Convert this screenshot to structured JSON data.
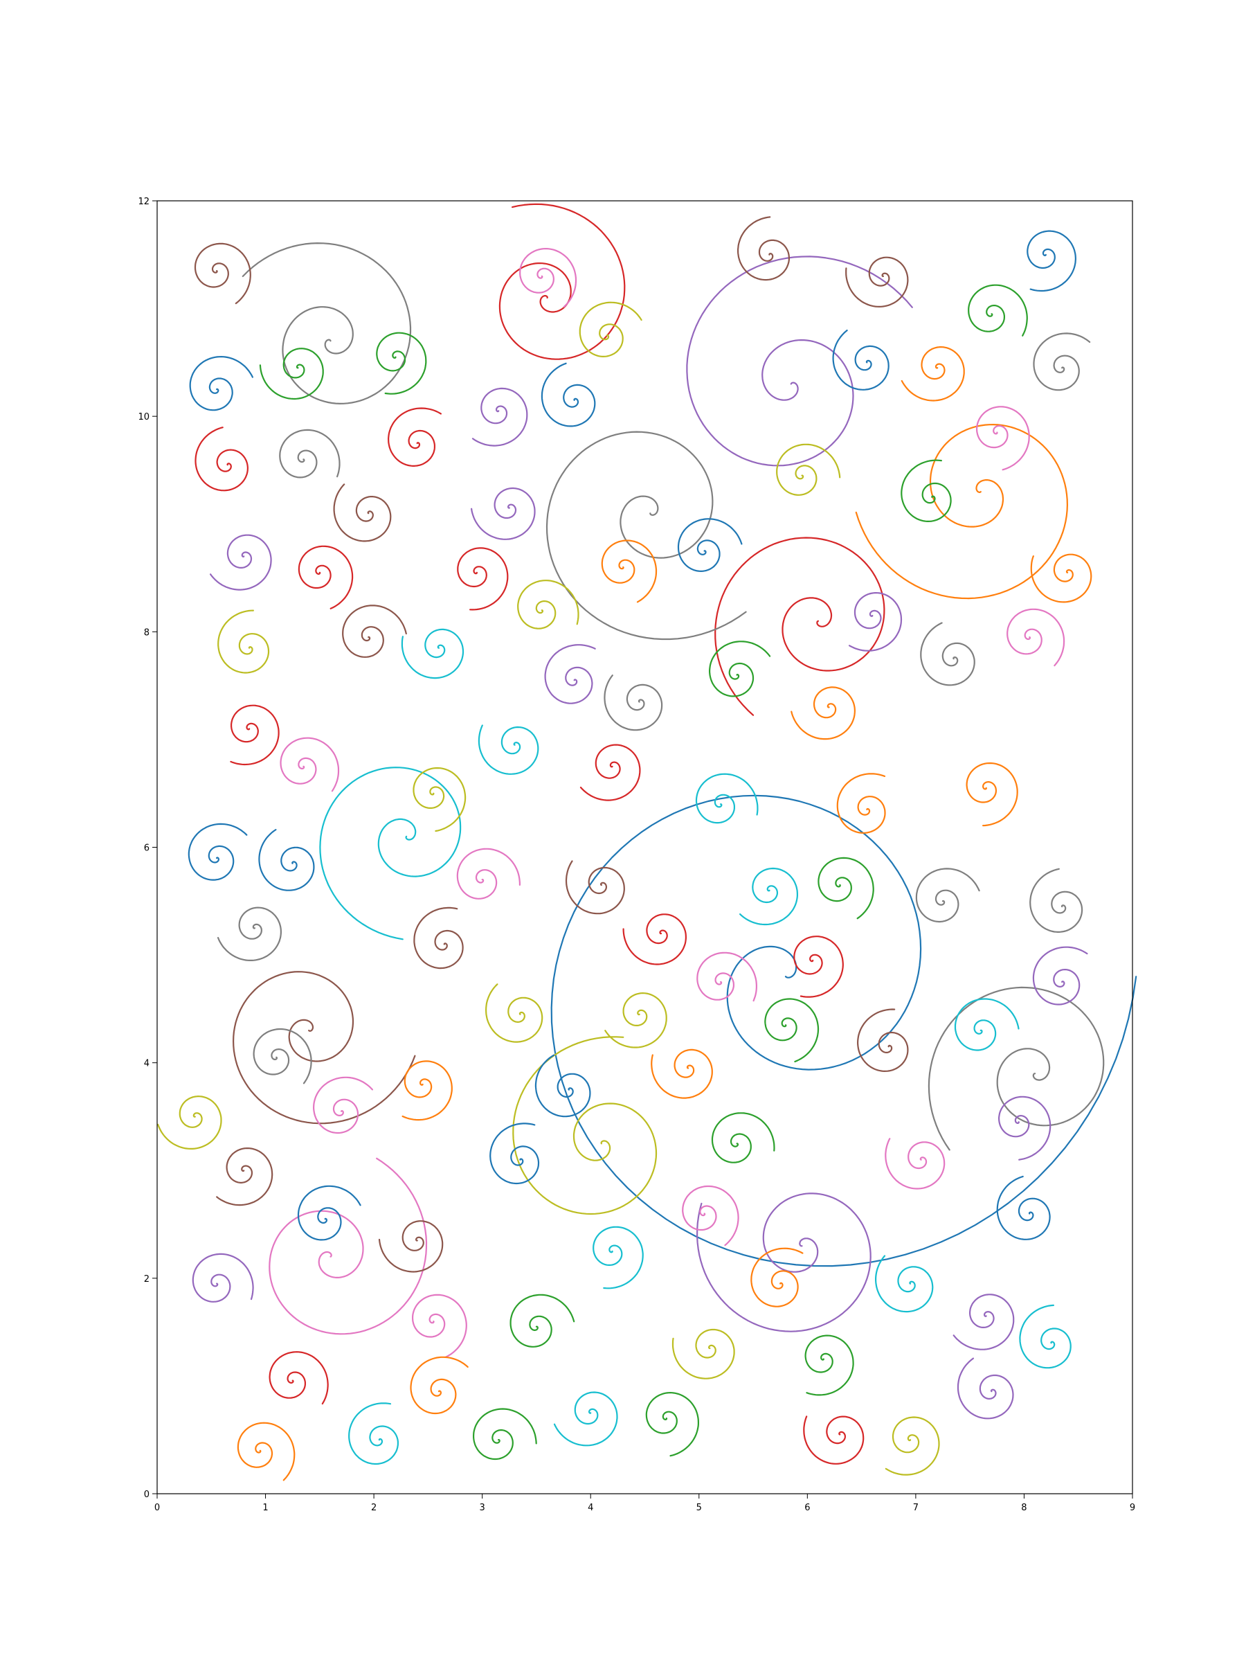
{
  "chart_data": {
    "type": "line",
    "title": "",
    "xlabel": "",
    "ylabel": "",
    "xlim": [
      0,
      9
    ],
    "ylim": [
      0,
      12
    ],
    "grid": false,
    "legend": "none",
    "x_ticks": [
      "0",
      "1",
      "2",
      "3",
      "4",
      "5",
      "6",
      "7",
      "8",
      "9"
    ],
    "y_ticks": [
      "0",
      "2",
      "4",
      "6",
      "8",
      "10",
      "12"
    ],
    "palette": [
      "#1f77b4",
      "#ff7f0e",
      "#2ca02c",
      "#d62728",
      "#9467bd",
      "#8c564b",
      "#e377c2",
      "#7f7f7f",
      "#bcbd22",
      "#17becf"
    ],
    "series": [
      {
        "cx": 5.8,
        "cy": 4.8,
        "r": 3.05,
        "cw": true,
        "color": "#1f77b4"
      },
      {
        "cx": 4.1,
        "cy": 3.25,
        "r": 0.95,
        "cw": false,
        "color": "#bcbd22"
      },
      {
        "cx": 5.95,
        "cy": 2.3,
        "r": 0.95,
        "cw": false,
        "color": "#9467bd"
      },
      {
        "cx": 6.1,
        "cy": 8.1,
        "r": 1.0,
        "cw": true,
        "color": "#d62728"
      },
      {
        "cx": 4.55,
        "cy": 9.1,
        "r": 1.2,
        "cw": true,
        "color": "#7f7f7f"
      },
      {
        "cx": 5.85,
        "cy": 10.3,
        "r": 1.25,
        "cw": false,
        "color": "#9467bd"
      },
      {
        "cx": 3.6,
        "cy": 11.1,
        "r": 0.85,
        "cw": true,
        "color": "#d62728"
      },
      {
        "cx": 7.6,
        "cy": 9.3,
        "r": 1.1,
        "cw": false,
        "color": "#ff7f0e"
      },
      {
        "cx": 2.3,
        "cy": 6.1,
        "r": 0.9,
        "cw": true,
        "color": "#17becf"
      },
      {
        "cx": 1.4,
        "cy": 4.3,
        "r": 0.95,
        "cw": true,
        "color": "#8c564b"
      },
      {
        "cx": 1.6,
        "cy": 2.2,
        "r": 0.95,
        "cw": true,
        "color": "#e377c2"
      },
      {
        "cx": 1.6,
        "cy": 10.7,
        "r": 0.95,
        "cw": true,
        "color": "#7f7f7f"
      },
      {
        "cx": 8.1,
        "cy": 3.9,
        "r": 1.0,
        "cw": true,
        "color": "#7f7f7f"
      },
      {
        "cx": 0.55,
        "cy": 11.35,
        "r": 0.33,
        "cw": false,
        "color": "#8c564b"
      },
      {
        "cx": 0.55,
        "cy": 10.25,
        "r": 0.33,
        "cw": false,
        "color": "#1f77b4"
      },
      {
        "cx": 0.65,
        "cy": 9.55,
        "r": 0.33,
        "cw": false,
        "color": "#d62728"
      },
      {
        "cx": 1.3,
        "cy": 10.45,
        "r": 0.33,
        "cw": false,
        "color": "#2ca02c"
      },
      {
        "cx": 2.2,
        "cy": 10.55,
        "r": 0.33,
        "cw": false,
        "color": "#2ca02c"
      },
      {
        "cx": 1.35,
        "cy": 9.6,
        "r": 0.33,
        "cw": false,
        "color": "#7f7f7f"
      },
      {
        "cx": 2.4,
        "cy": 9.75,
        "r": 0.33,
        "cw": false,
        "color": "#d62728"
      },
      {
        "cx": 1.95,
        "cy": 9.1,
        "r": 0.33,
        "cw": false,
        "color": "#8c564b"
      },
      {
        "cx": 0.8,
        "cy": 8.7,
        "r": 0.33,
        "cw": false,
        "color": "#9467bd"
      },
      {
        "cx": 1.5,
        "cy": 8.55,
        "r": 0.33,
        "cw": false,
        "color": "#d62728"
      },
      {
        "cx": 1.95,
        "cy": 7.95,
        "r": 0.33,
        "cw": false,
        "color": "#8c564b"
      },
      {
        "cx": 0.85,
        "cy": 7.85,
        "r": 0.33,
        "cw": false,
        "color": "#bcbd22"
      },
      {
        "cx": 2.6,
        "cy": 7.85,
        "r": 0.33,
        "cw": false,
        "color": "#17becf"
      },
      {
        "cx": 0.85,
        "cy": 7.1,
        "r": 0.33,
        "cw": false,
        "color": "#d62728"
      },
      {
        "cx": 1.35,
        "cy": 6.75,
        "r": 0.33,
        "cw": false,
        "color": "#e377c2"
      },
      {
        "cx": 0.55,
        "cy": 5.9,
        "r": 0.33,
        "cw": false,
        "color": "#1f77b4"
      },
      {
        "cx": 1.25,
        "cy": 5.85,
        "r": 0.33,
        "cw": false,
        "color": "#1f77b4"
      },
      {
        "cx": 0.9,
        "cy": 5.25,
        "r": 0.33,
        "cw": false,
        "color": "#7f7f7f"
      },
      {
        "cx": 2.55,
        "cy": 6.5,
        "r": 0.33,
        "cw": false,
        "color": "#bcbd22"
      },
      {
        "cx": 3.0,
        "cy": 5.7,
        "r": 0.33,
        "cw": false,
        "color": "#e377c2"
      },
      {
        "cx": 2.65,
        "cy": 5.1,
        "r": 0.33,
        "cw": false,
        "color": "#8c564b"
      },
      {
        "cx": 3.3,
        "cy": 6.95,
        "r": 0.33,
        "cw": false,
        "color": "#17becf"
      },
      {
        "cx": 3.15,
        "cy": 10.05,
        "r": 0.33,
        "cw": false,
        "color": "#9467bd"
      },
      {
        "cx": 3.55,
        "cy": 11.3,
        "r": 0.33,
        "cw": false,
        "color": "#e377c2"
      },
      {
        "cx": 4.15,
        "cy": 10.75,
        "r": 0.33,
        "cw": false,
        "color": "#bcbd22"
      },
      {
        "cx": 3.85,
        "cy": 10.15,
        "r": 0.33,
        "cw": false,
        "color": "#1f77b4"
      },
      {
        "cx": 3.25,
        "cy": 9.15,
        "r": 0.33,
        "cw": false,
        "color": "#9467bd"
      },
      {
        "cx": 2.95,
        "cy": 8.55,
        "r": 0.33,
        "cw": false,
        "color": "#d62728"
      },
      {
        "cx": 3.55,
        "cy": 8.2,
        "r": 0.33,
        "cw": false,
        "color": "#bcbd22"
      },
      {
        "cx": 3.85,
        "cy": 7.55,
        "r": 0.33,
        "cw": false,
        "color": "#9467bd"
      },
      {
        "cx": 4.45,
        "cy": 7.35,
        "r": 0.33,
        "cw": false,
        "color": "#7f7f7f"
      },
      {
        "cx": 4.2,
        "cy": 6.75,
        "r": 0.33,
        "cw": false,
        "color": "#d62728"
      },
      {
        "cx": 4.3,
        "cy": 8.6,
        "r": 0.33,
        "cw": false,
        "color": "#ff7f0e"
      },
      {
        "cx": 5.05,
        "cy": 8.75,
        "r": 0.33,
        "cw": false,
        "color": "#1f77b4"
      },
      {
        "cx": 5.65,
        "cy": 11.5,
        "r": 0.33,
        "cw": false,
        "color": "#8c564b"
      },
      {
        "cx": 6.7,
        "cy": 11.3,
        "r": 0.33,
        "cw": false,
        "color": "#8c564b"
      },
      {
        "cx": 8.2,
        "cy": 11.5,
        "r": 0.33,
        "cw": false,
        "color": "#1f77b4"
      },
      {
        "cx": 7.7,
        "cy": 10.95,
        "r": 0.33,
        "cw": false,
        "color": "#2ca02c"
      },
      {
        "cx": 8.35,
        "cy": 10.45,
        "r": 0.33,
        "cw": false,
        "color": "#7f7f7f"
      },
      {
        "cx": 6.55,
        "cy": 10.5,
        "r": 0.33,
        "cw": false,
        "color": "#1f77b4"
      },
      {
        "cx": 7.2,
        "cy": 10.45,
        "r": 0.33,
        "cw": false,
        "color": "#ff7f0e"
      },
      {
        "cx": 7.75,
        "cy": 9.85,
        "r": 0.33,
        "cw": false,
        "color": "#e377c2"
      },
      {
        "cx": 5.95,
        "cy": 9.45,
        "r": 0.33,
        "cw": false,
        "color": "#bcbd22"
      },
      {
        "cx": 7.15,
        "cy": 9.25,
        "r": 0.33,
        "cw": false,
        "color": "#2ca02c"
      },
      {
        "cx": 8.4,
        "cy": 8.55,
        "r": 0.33,
        "cw": false,
        "color": "#ff7f0e"
      },
      {
        "cx": 6.6,
        "cy": 8.15,
        "r": 0.33,
        "cw": false,
        "color": "#9467bd"
      },
      {
        "cx": 8.05,
        "cy": 7.95,
        "r": 0.33,
        "cw": false,
        "color": "#e377c2"
      },
      {
        "cx": 5.35,
        "cy": 7.6,
        "r": 0.33,
        "cw": false,
        "color": "#2ca02c"
      },
      {
        "cx": 7.35,
        "cy": 7.75,
        "r": 0.33,
        "cw": false,
        "color": "#7f7f7f"
      },
      {
        "cx": 6.2,
        "cy": 7.3,
        "r": 0.33,
        "cw": false,
        "color": "#ff7f0e"
      },
      {
        "cx": 7.65,
        "cy": 6.55,
        "r": 0.33,
        "cw": false,
        "color": "#ff7f0e"
      },
      {
        "cx": 5.2,
        "cy": 6.4,
        "r": 0.33,
        "cw": false,
        "color": "#17becf"
      },
      {
        "cx": 6.55,
        "cy": 6.35,
        "r": 0.33,
        "cw": false,
        "color": "#ff7f0e"
      },
      {
        "cx": 4.1,
        "cy": 5.65,
        "r": 0.33,
        "cw": false,
        "color": "#8c564b"
      },
      {
        "cx": 5.65,
        "cy": 5.6,
        "r": 0.33,
        "cw": false,
        "color": "#17becf"
      },
      {
        "cx": 6.3,
        "cy": 5.65,
        "r": 0.33,
        "cw": false,
        "color": "#2ca02c"
      },
      {
        "cx": 7.25,
        "cy": 5.5,
        "r": 0.33,
        "cw": false,
        "color": "#7f7f7f"
      },
      {
        "cx": 8.35,
        "cy": 5.45,
        "r": 0.33,
        "cw": false,
        "color": "#7f7f7f"
      },
      {
        "cx": 4.65,
        "cy": 5.2,
        "r": 0.33,
        "cw": false,
        "color": "#d62728"
      },
      {
        "cx": 6.05,
        "cy": 4.95,
        "r": 0.33,
        "cw": false,
        "color": "#d62728"
      },
      {
        "cx": 5.2,
        "cy": 4.75,
        "r": 0.33,
        "cw": false,
        "color": "#e377c2"
      },
      {
        "cx": 8.35,
        "cy": 4.75,
        "r": 0.33,
        "cw": false,
        "color": "#9467bd"
      },
      {
        "cx": 3.35,
        "cy": 4.45,
        "r": 0.33,
        "cw": false,
        "color": "#bcbd22"
      },
      {
        "cx": 4.45,
        "cy": 4.45,
        "r": 0.33,
        "cw": false,
        "color": "#bcbd22"
      },
      {
        "cx": 5.8,
        "cy": 4.35,
        "r": 0.33,
        "cw": false,
        "color": "#2ca02c"
      },
      {
        "cx": 7.6,
        "cy": 4.3,
        "r": 0.33,
        "cw": false,
        "color": "#17becf"
      },
      {
        "cx": 6.75,
        "cy": 4.15,
        "r": 0.33,
        "cw": false,
        "color": "#8c564b"
      },
      {
        "cx": 4.9,
        "cy": 3.95,
        "r": 0.33,
        "cw": false,
        "color": "#ff7f0e"
      },
      {
        "cx": 2.45,
        "cy": 3.8,
        "r": 0.33,
        "cw": false,
        "color": "#ff7f0e"
      },
      {
        "cx": 1.1,
        "cy": 4.05,
        "r": 0.33,
        "cw": false,
        "color": "#7f7f7f"
      },
      {
        "cx": 1.7,
        "cy": 3.55,
        "r": 0.33,
        "cw": false,
        "color": "#e377c2"
      },
      {
        "cx": 3.8,
        "cy": 3.75,
        "r": 0.33,
        "cw": false,
        "color": "#1f77b4"
      },
      {
        "cx": 0.35,
        "cy": 3.5,
        "r": 0.33,
        "cw": false,
        "color": "#bcbd22"
      },
      {
        "cx": 7.95,
        "cy": 3.45,
        "r": 0.33,
        "cw": false,
        "color": "#9467bd"
      },
      {
        "cx": 5.35,
        "cy": 3.25,
        "r": 0.33,
        "cw": false,
        "color": "#2ca02c"
      },
      {
        "cx": 3.35,
        "cy": 3.1,
        "r": 0.33,
        "cw": false,
        "color": "#1f77b4"
      },
      {
        "cx": 7.05,
        "cy": 3.1,
        "r": 0.33,
        "cw": false,
        "color": "#e377c2"
      },
      {
        "cx": 0.8,
        "cy": 3.0,
        "r": 0.33,
        "cw": false,
        "color": "#8c564b"
      },
      {
        "cx": 5.05,
        "cy": 2.6,
        "r": 0.33,
        "cw": false,
        "color": "#e377c2"
      },
      {
        "cx": 1.55,
        "cy": 2.55,
        "r": 0.33,
        "cw": false,
        "color": "#1f77b4"
      },
      {
        "cx": 8.05,
        "cy": 2.6,
        "r": 0.33,
        "cw": false,
        "color": "#1f77b4"
      },
      {
        "cx": 2.4,
        "cy": 2.35,
        "r": 0.33,
        "cw": false,
        "color": "#8c564b"
      },
      {
        "cx": 4.2,
        "cy": 2.25,
        "r": 0.33,
        "cw": false,
        "color": "#17becf"
      },
      {
        "cx": 0.55,
        "cy": 1.95,
        "r": 0.33,
        "cw": false,
        "color": "#9467bd"
      },
      {
        "cx": 5.75,
        "cy": 1.95,
        "r": 0.33,
        "cw": false,
        "color": "#ff7f0e"
      },
      {
        "cx": 6.95,
        "cy": 1.95,
        "r": 0.33,
        "cw": false,
        "color": "#17becf"
      },
      {
        "cx": 7.65,
        "cy": 1.65,
        "r": 0.33,
        "cw": false,
        "color": "#9467bd"
      },
      {
        "cx": 2.55,
        "cy": 1.6,
        "r": 0.33,
        "cw": false,
        "color": "#e377c2"
      },
      {
        "cx": 3.5,
        "cy": 1.55,
        "r": 0.33,
        "cw": false,
        "color": "#2ca02c"
      },
      {
        "cx": 8.25,
        "cy": 1.4,
        "r": 0.33,
        "cw": false,
        "color": "#17becf"
      },
      {
        "cx": 5.1,
        "cy": 1.35,
        "r": 0.33,
        "cw": false,
        "color": "#bcbd22"
      },
      {
        "cx": 6.15,
        "cy": 1.25,
        "r": 0.33,
        "cw": false,
        "color": "#2ca02c"
      },
      {
        "cx": 1.25,
        "cy": 1.05,
        "r": 0.33,
        "cw": false,
        "color": "#d62728"
      },
      {
        "cx": 2.6,
        "cy": 0.95,
        "r": 0.33,
        "cw": false,
        "color": "#ff7f0e"
      },
      {
        "cx": 7.7,
        "cy": 0.95,
        "r": 0.33,
        "cw": false,
        "color": "#9467bd"
      },
      {
        "cx": 4.0,
        "cy": 0.75,
        "r": 0.33,
        "cw": false,
        "color": "#17becf"
      },
      {
        "cx": 4.7,
        "cy": 0.7,
        "r": 0.33,
        "cw": false,
        "color": "#2ca02c"
      },
      {
        "cx": 3.15,
        "cy": 0.5,
        "r": 0.33,
        "cw": false,
        "color": "#2ca02c"
      },
      {
        "cx": 2.05,
        "cy": 0.5,
        "r": 0.33,
        "cw": false,
        "color": "#17becf"
      },
      {
        "cx": 6.3,
        "cy": 0.55,
        "r": 0.33,
        "cw": false,
        "color": "#d62728"
      },
      {
        "cx": 6.95,
        "cy": 0.5,
        "r": 0.33,
        "cw": false,
        "color": "#bcbd22"
      },
      {
        "cx": 0.95,
        "cy": 0.4,
        "r": 0.33,
        "cw": false,
        "color": "#ff7f0e"
      }
    ]
  }
}
